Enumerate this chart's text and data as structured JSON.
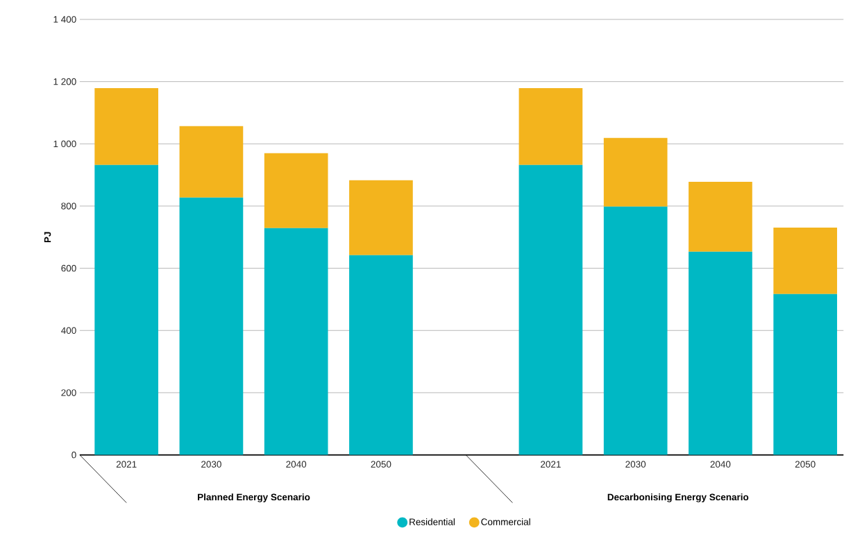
{
  "chart_data": {
    "type": "bar",
    "stacked": true,
    "ylabel": "PJ",
    "categories": [
      "2021",
      "2030",
      "2040",
      "2050",
      null,
      "2021",
      "2030",
      "2040",
      "2050"
    ],
    "series": [
      {
        "name": "Residential",
        "color": "#00b8c4",
        "values": [
          932,
          827,
          729,
          642,
          null,
          932,
          798,
          653,
          517
        ]
      },
      {
        "name": "Commercial",
        "color": "#f3b41d",
        "values": [
          247,
          230,
          241,
          241,
          null,
          247,
          221,
          225,
          214
        ]
      }
    ],
    "ylim": [
      0,
      1400
    ],
    "yticks": [
      0,
      200,
      400,
      600,
      800,
      {
        "value": 1000,
        "label": "1 000"
      },
      {
        "value": 1200,
        "label": "1 200"
      },
      {
        "value": 1400,
        "label": "1 400"
      }
    ],
    "grid": "y",
    "legend": "bottom",
    "annotations": [
      "Planned Energy Scenario",
      "Decarbonising Energy Scenario"
    ]
  }
}
